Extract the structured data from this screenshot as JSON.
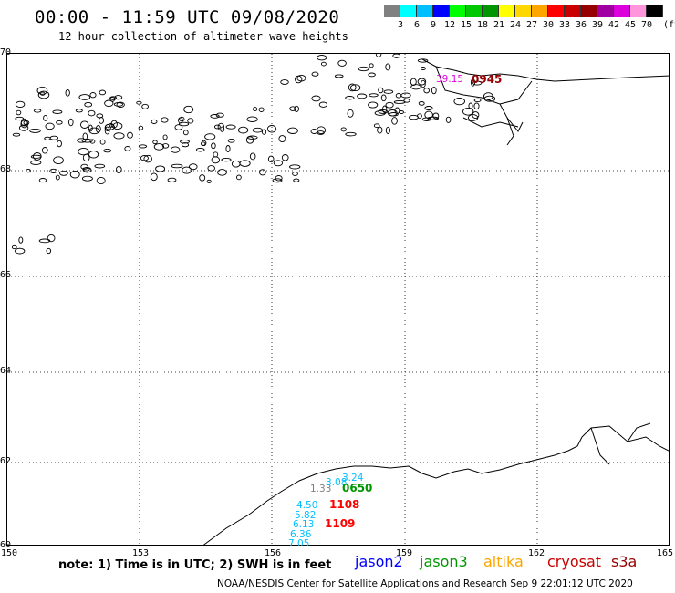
{
  "header": {
    "title": "00:00 - 11:59 UTC 09/08/2020",
    "subtitle": "12 hour collection of altimeter wave heights"
  },
  "legend": {
    "unit": "(ft)",
    "colors": [
      "#808080",
      "#00ffff",
      "#00bfff",
      "#0000ff",
      "#00ff00",
      "#00c800",
      "#009600",
      "#ffff00",
      "#ffd700",
      "#ffa500",
      "#ff0000",
      "#c80000",
      "#960000",
      "#a000a0",
      "#dc00dc",
      "#ff96dc",
      "#000000"
    ],
    "labels": [
      "3",
      "6",
      "9",
      "12",
      "15",
      "18",
      "21",
      "24",
      "27",
      "30",
      "33",
      "36",
      "39",
      "42",
      "45",
      "70"
    ]
  },
  "axes": {
    "lat_labels": [
      "70",
      "68",
      "66",
      "64",
      "62",
      "60"
    ],
    "lon_labels": [
      "150",
      "153",
      "156",
      "159",
      "162",
      "165"
    ]
  },
  "observations": [
    {
      "text": "1.33",
      "color": "#808080"
    },
    {
      "text": "3.08",
      "color": "#00bfff"
    },
    {
      "text": "3.24",
      "color": "#00bfff"
    },
    {
      "text": "4.50",
      "color": "#00bfff"
    },
    {
      "text": "5.82",
      "color": "#00bfff"
    },
    {
      "text": "6.13",
      "color": "#00bfff"
    },
    {
      "text": "6.36",
      "color": "#00bfff"
    },
    {
      "text": "7.05",
      "color": "#00bfff"
    },
    {
      "text": "39.15",
      "color": "#dc00dc"
    }
  ],
  "passes": [
    {
      "text": "0650",
      "color": "#009600"
    },
    {
      "text": "1108",
      "color": "#ff0000"
    },
    {
      "text": "1109",
      "color": "#ff0000"
    },
    {
      "text": "0945",
      "color": "#960000"
    }
  ],
  "footer": {
    "note": "note: 1) Time is in UTC; 2) SWH is in feet",
    "credit": "NOAA/NESDIS Center for Satellite Applications and Research   Sep  9 22:01:12 UTC 2020"
  },
  "satellites": [
    {
      "name": "jason2",
      "color": "#0000ff"
    },
    {
      "name": "jason3",
      "color": "#009600"
    },
    {
      "name": "altika",
      "color": "#ffa500"
    },
    {
      "name": "cryosat",
      "color": "#c80000"
    },
    {
      "name": "s3a",
      "color": "#960000"
    }
  ]
}
